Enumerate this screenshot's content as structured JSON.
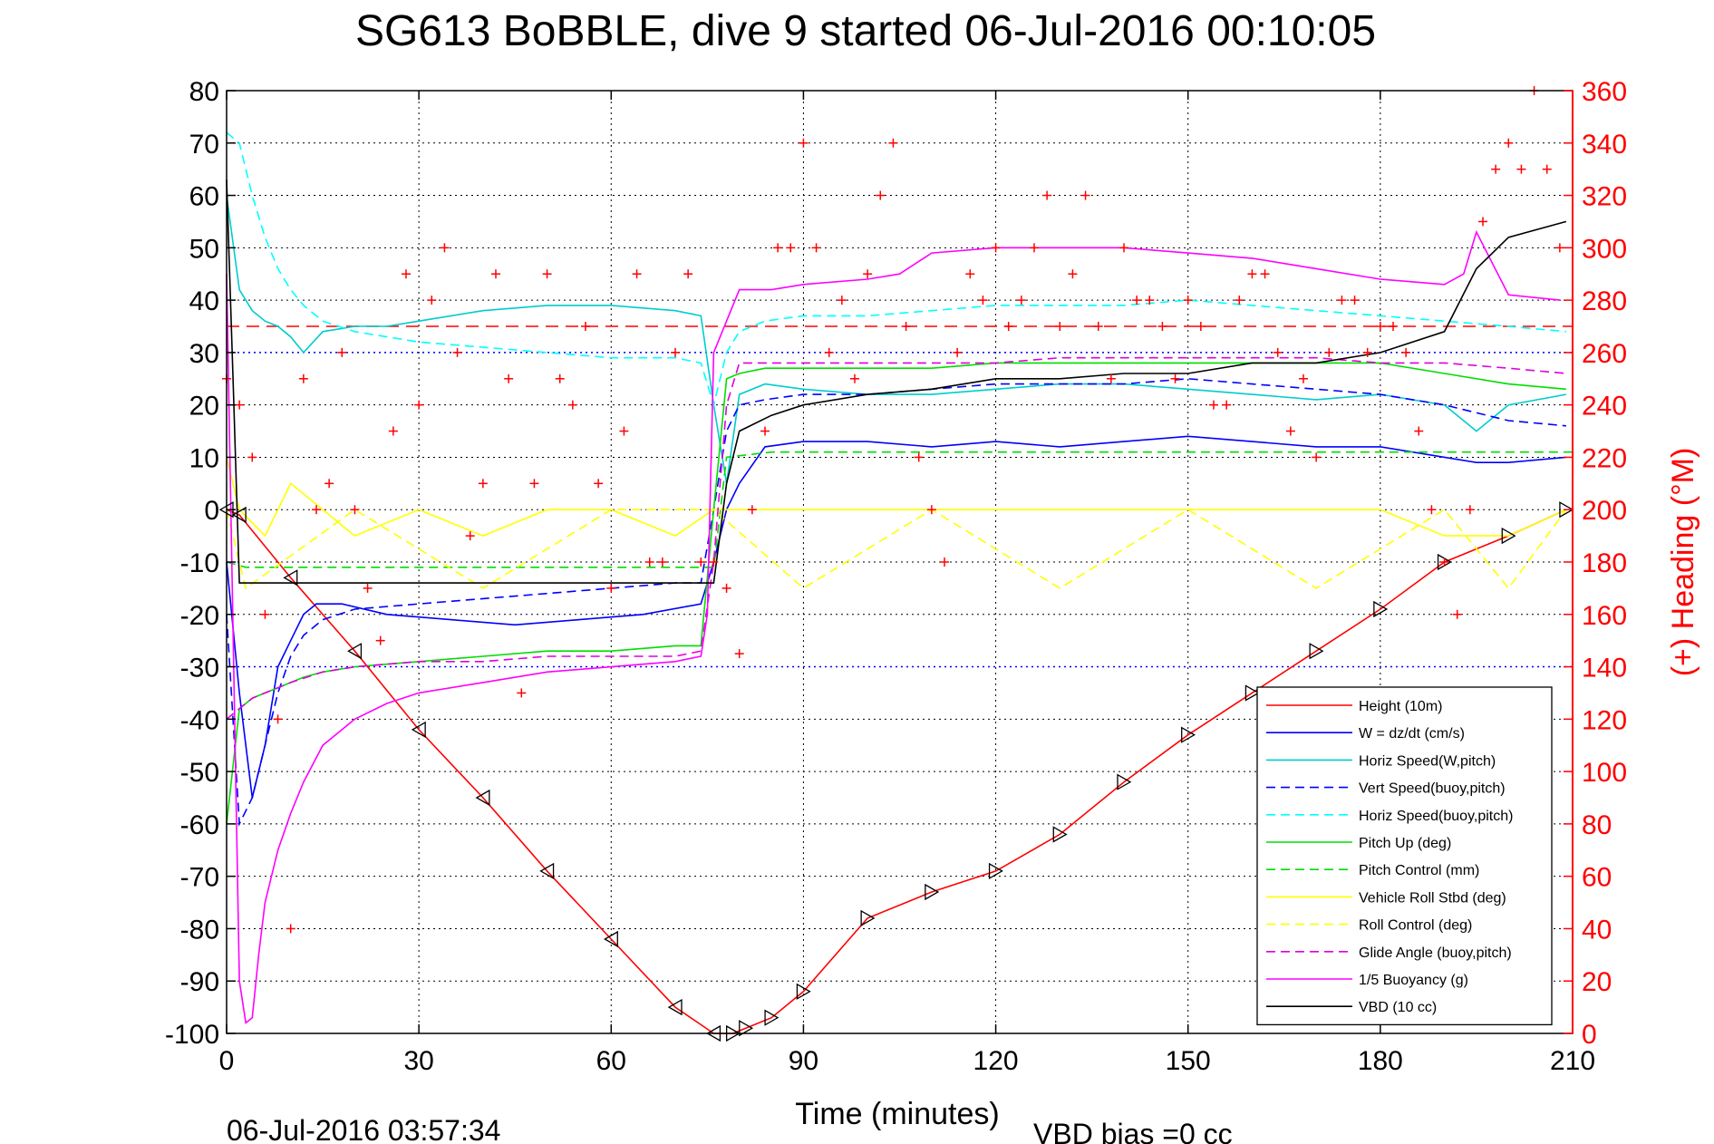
{
  "chart_data": {
    "type": "line",
    "title": "SG613 BoBBLE, dive 9 started 06-Jul-2016 00:10:05",
    "xlabel": "Time (minutes)",
    "ylabel_right": "(+) Heading (°M)",
    "xlim": [
      0,
      210
    ],
    "ylim": [
      -100,
      80
    ],
    "ylim_right": [
      0,
      360
    ],
    "xticks": [
      "0",
      "30",
      "60",
      "90",
      "120",
      "150",
      "180",
      "210"
    ],
    "yticks": [
      "80",
      "70",
      "60",
      "50",
      "40",
      "30",
      "20",
      "10",
      "0",
      "-10",
      "-20",
      "-30",
      "-40",
      "-50",
      "-60",
      "-70",
      "-80",
      "-90",
      "-100"
    ],
    "yticks_right": [
      "360",
      "340",
      "320",
      "300",
      "280",
      "260",
      "240",
      "220",
      "200",
      "180",
      "160",
      "140",
      "120",
      "100",
      "80",
      "60",
      "40",
      "20",
      "0"
    ],
    "grid": true,
    "legend_position": "bottom-right",
    "footer_left": "06-Jul-2016 03:57:34",
    "footer_right": "VBD bias =0 cc",
    "reference_lines": [
      {
        "axis": "right",
        "y": 270,
        "color": "#ff0000",
        "style": "dashed"
      },
      {
        "axis": "left",
        "y": -30,
        "color": "#0000ff",
        "style": "dotted"
      },
      {
        "axis": "left",
        "y": 30,
        "color": "#0000ff",
        "style": "dotted"
      }
    ],
    "series": [
      {
        "name": "Height (10m)",
        "color": "#ff0000",
        "style": "solid",
        "marker": "triangles",
        "x": [
          0,
          2,
          10,
          20,
          30,
          40,
          50,
          60,
          70,
          76,
          79,
          81,
          85,
          90,
          100,
          110,
          120,
          130,
          140,
          150,
          160,
          170,
          180,
          190,
          200,
          209
        ],
        "y": [
          0,
          -1,
          -13,
          -27,
          -42,
          -55,
          -69,
          -82,
          -95,
          -100,
          -100,
          -99,
          -97,
          -92,
          -78,
          -73,
          -69,
          -62,
          -52,
          -43,
          -35,
          -27,
          -19,
          -10,
          -5,
          0
        ]
      },
      {
        "name": "W = dz/dt (cm/s)",
        "color": "#0000ff",
        "style": "solid",
        "x": [
          0,
          2,
          4,
          6,
          8,
          10,
          12,
          14,
          18,
          25,
          35,
          45,
          55,
          65,
          74,
          76,
          78,
          80,
          84,
          90,
          100,
          110,
          120,
          130,
          140,
          150,
          160,
          170,
          180,
          190,
          195,
          200,
          209
        ],
        "y": [
          -10,
          -35,
          -55,
          -45,
          -30,
          -25,
          -20,
          -18,
          -18,
          -20,
          -21,
          -22,
          -21,
          -20,
          -18,
          -10,
          0,
          5,
          12,
          13,
          13,
          12,
          13,
          12,
          13,
          14,
          13,
          12,
          12,
          10,
          9,
          9,
          10
        ]
      },
      {
        "name": "Horiz Speed(W,pitch)",
        "color": "#00cccc",
        "style": "solid",
        "x": [
          0,
          2,
          4,
          6,
          8,
          10,
          12,
          15,
          20,
          25,
          30,
          40,
          50,
          60,
          70,
          74,
          76,
          78,
          80,
          84,
          90,
          100,
          110,
          120,
          130,
          140,
          150,
          160,
          170,
          180,
          190,
          195,
          200,
          209
        ],
        "y": [
          60,
          42,
          38,
          36,
          35,
          33,
          30,
          34,
          35,
          35,
          36,
          38,
          39,
          39,
          38,
          37,
          20,
          5,
          22,
          24,
          23,
          22,
          22,
          23,
          24,
          24,
          23,
          22,
          21,
          22,
          20,
          15,
          20,
          22
        ]
      },
      {
        "name": "Vert Speed(buoy,pitch)",
        "color": "#0000ff",
        "style": "dashed",
        "x": [
          0,
          2,
          4,
          6,
          8,
          10,
          12,
          15,
          20,
          30,
          40,
          50,
          60,
          70,
          74,
          76,
          78,
          80,
          84,
          90,
          100,
          110,
          120,
          130,
          140,
          150,
          160,
          170,
          180,
          190,
          200,
          209
        ],
        "y": [
          -20,
          -60,
          -55,
          -45,
          -35,
          -28,
          -24,
          -21,
          -19,
          -18,
          -17,
          -16,
          -15,
          -14,
          -14,
          0,
          15,
          20,
          21,
          22,
          22,
          23,
          24,
          24,
          24,
          25,
          24,
          23,
          22,
          20,
          17,
          16
        ]
      },
      {
        "name": "Horiz Speed(buoy,pitch)",
        "color": "#00ffff",
        "style": "dashed",
        "x": [
          0,
          2,
          4,
          6,
          8,
          10,
          12,
          15,
          20,
          30,
          40,
          50,
          60,
          70,
          74,
          76,
          78,
          80,
          84,
          90,
          100,
          110,
          120,
          130,
          140,
          150,
          160,
          170,
          180,
          190,
          200,
          209
        ],
        "y": [
          72,
          70,
          60,
          52,
          46,
          42,
          39,
          36,
          34,
          32,
          31,
          30,
          29,
          29,
          28,
          20,
          30,
          34,
          36,
          37,
          37,
          38,
          39,
          39,
          39,
          40,
          39,
          38,
          37,
          36,
          35,
          34
        ]
      },
      {
        "name": "Pitch Up (deg)",
        "color": "#00dd00",
        "style": "solid",
        "x": [
          0,
          2,
          4,
          6,
          8,
          10,
          12,
          15,
          20,
          30,
          40,
          50,
          60,
          70,
          74,
          76,
          78,
          80,
          84,
          90,
          100,
          110,
          120,
          130,
          140,
          150,
          160,
          170,
          180,
          190,
          200,
          209
        ],
        "y": [
          -60,
          -38,
          -36,
          -35,
          -34,
          -33,
          -32,
          -31,
          -30,
          -29,
          -28,
          -27,
          -27,
          -26,
          -26,
          0,
          25,
          26,
          27,
          27,
          27,
          27,
          28,
          28,
          28,
          28,
          28,
          28,
          28,
          26,
          24,
          23
        ]
      },
      {
        "name": "Pitch Control (mm)",
        "color": "#00dd00",
        "style": "dashed",
        "x": [
          0,
          3,
          76,
          78,
          85,
          210
        ],
        "y": [
          -10,
          -11,
          -11,
          10,
          11,
          11
        ]
      },
      {
        "name": "Vehicle Roll Stbd (deg)",
        "color": "#ffff00",
        "style": "solid",
        "x": [
          0,
          2,
          6,
          10,
          15,
          20,
          30,
          40,
          50,
          60,
          70,
          76,
          80,
          85,
          90,
          100,
          110,
          120,
          130,
          140,
          150,
          160,
          170,
          180,
          190,
          200,
          209
        ],
        "y": [
          10,
          0,
          -5,
          5,
          0,
          -5,
          0,
          -5,
          0,
          0,
          -5,
          0,
          0,
          0,
          0,
          0,
          0,
          0,
          0,
          0,
          0,
          0,
          0,
          0,
          -5,
          -5,
          0
        ]
      },
      {
        "name": "Roll Control (deg)",
        "color": "#ffff00",
        "style": "dashed",
        "x": [
          0,
          3,
          20,
          40,
          60,
          76,
          90,
          110,
          130,
          150,
          170,
          190,
          200,
          209
        ],
        "y": [
          0,
          -15,
          0,
          -15,
          0,
          0,
          -15,
          0,
          -15,
          0,
          -15,
          0,
          -15,
          0
        ]
      },
      {
        "name": "Glide Angle (buoy,pitch)",
        "color": "#dd00dd",
        "style": "dashed",
        "x": [
          0,
          2,
          4,
          6,
          8,
          10,
          15,
          20,
          30,
          40,
          50,
          60,
          70,
          74,
          76,
          78,
          80,
          84,
          90,
          100,
          110,
          120,
          130,
          140,
          150,
          160,
          170,
          180,
          190,
          200,
          209
        ],
        "y": [
          -40,
          -38,
          -36,
          -35,
          -34,
          -33,
          -31,
          -30,
          -29,
          -29,
          -28,
          -28,
          -28,
          -27,
          -10,
          20,
          28,
          28,
          28,
          28,
          28,
          28,
          29,
          29,
          29,
          29,
          29,
          28,
          28,
          27,
          26
        ]
      },
      {
        "name": "1/5 Buoyancy (g)",
        "color": "#ff00ff",
        "style": "solid",
        "x": [
          0,
          2,
          3,
          4,
          5,
          6,
          8,
          10,
          12,
          15,
          20,
          25,
          30,
          40,
          50,
          60,
          70,
          74,
          75,
          76,
          80,
          85,
          90,
          100,
          105,
          110,
          120,
          130,
          140,
          150,
          160,
          170,
          180,
          190,
          193,
          195,
          200,
          208
        ],
        "y": [
          45,
          -90,
          -98,
          -97,
          -85,
          -75,
          -65,
          -58,
          -52,
          -45,
          -40,
          -37,
          -35,
          -33,
          -31,
          -30,
          -29,
          -28,
          -20,
          30,
          42,
          42,
          43,
          44,
          45,
          49,
          50,
          50,
          50,
          49,
          48,
          46,
          44,
          43,
          45,
          53,
          41,
          40
        ]
      },
      {
        "name": "VBD (10 cc)",
        "color": "#000000",
        "style": "solid",
        "x": [
          0,
          1,
          2,
          76,
          78,
          80,
          85,
          90,
          100,
          110,
          120,
          130,
          140,
          150,
          160,
          170,
          180,
          190,
          195,
          200,
          209
        ],
        "y": [
          63,
          25,
          -14,
          -14,
          5,
          15,
          18,
          20,
          22,
          23,
          25,
          25,
          26,
          26,
          28,
          28,
          30,
          34,
          46,
          52,
          55
        ]
      },
      {
        "name": "(+) Heading",
        "axis": "right",
        "color": "#ff0000",
        "marker": "plus",
        "legend": false,
        "x": [
          0,
          2,
          4,
          6,
          8,
          10,
          12,
          14,
          16,
          18,
          20,
          22,
          24,
          26,
          28,
          30,
          32,
          34,
          36,
          38,
          40,
          42,
          44,
          46,
          48,
          50,
          52,
          54,
          56,
          58,
          60,
          62,
          64,
          66,
          68,
          70,
          72,
          74,
          76,
          78,
          80,
          82,
          84,
          86,
          88,
          90,
          92,
          94,
          96,
          98,
          100,
          102,
          104,
          106,
          108,
          110,
          112,
          114,
          116,
          118,
          120,
          122,
          124,
          126,
          128,
          130,
          132,
          134,
          136,
          138,
          140,
          142,
          144,
          146,
          148,
          150,
          152,
          154,
          156,
          158,
          160,
          162,
          164,
          166,
          168,
          170,
          172,
          174,
          176,
          178,
          180,
          182,
          184,
          186,
          188,
          190,
          192,
          194,
          196,
          198,
          200,
          202,
          204,
          206,
          208
        ],
        "y": [
          250,
          240,
          220,
          160,
          120,
          40,
          250,
          200,
          210,
          260,
          200,
          170,
          150,
          230,
          290,
          240,
          280,
          300,
          260,
          190,
          210,
          290,
          250,
          130,
          210,
          290,
          250,
          240,
          270,
          210,
          170,
          230,
          290,
          180,
          180,
          260,
          290,
          180,
          180,
          170,
          145,
          200,
          230,
          300,
          300,
          340,
          300,
          260,
          280,
          250,
          290,
          320,
          340,
          270,
          220,
          200,
          180,
          260,
          290,
          280,
          300,
          270,
          280,
          300,
          320,
          270,
          290,
          320,
          270,
          250,
          300,
          280,
          280,
          270,
          250,
          280,
          270,
          240,
          240,
          280,
          290,
          290,
          260,
          230,
          250,
          220,
          260,
          280,
          280,
          260,
          270,
          270,
          260,
          230,
          200,
          180,
          160,
          200,
          310,
          330,
          340,
          330,
          360,
          330,
          300
        ]
      }
    ]
  }
}
